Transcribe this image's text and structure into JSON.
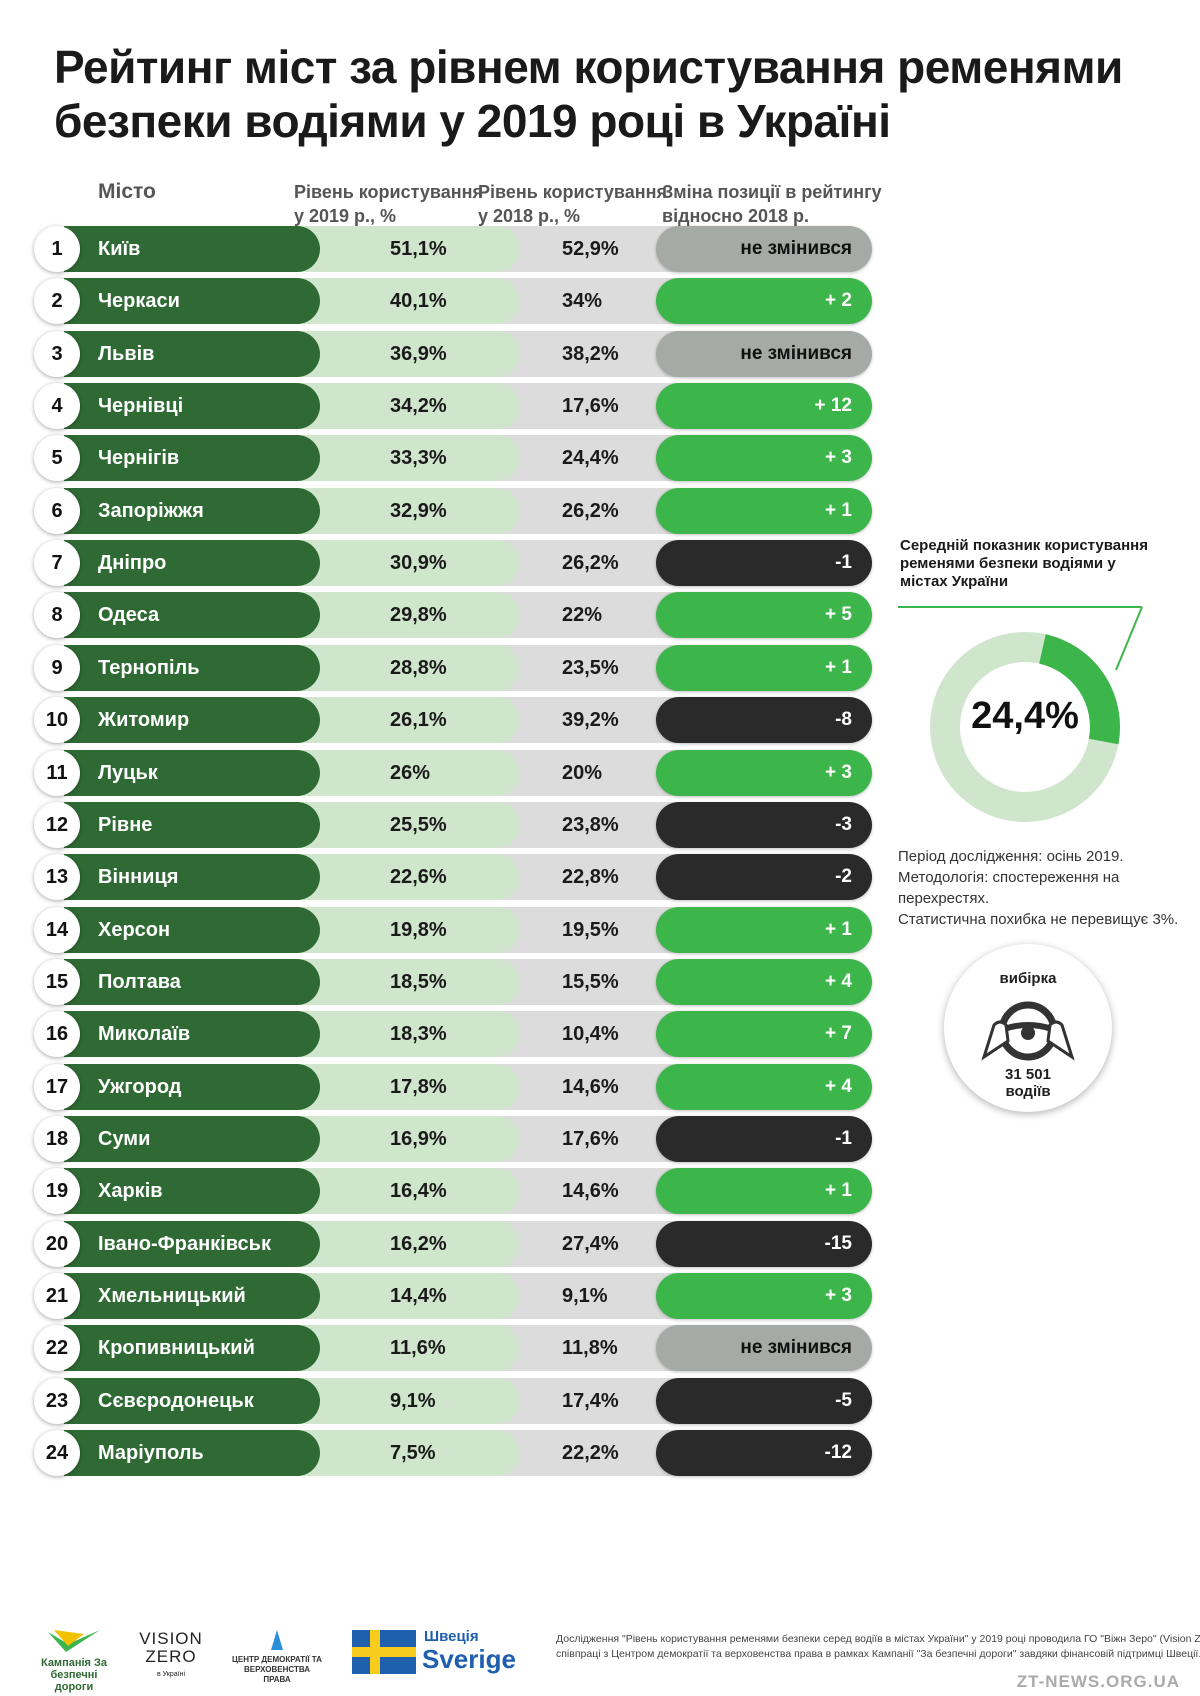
{
  "title": {
    "line1": "Рейтинг міст за рівнем користування ременями",
    "line2": "безпеки водіями у 2019 році в Україні"
  },
  "headers": {
    "city": "Місто",
    "y2019_line1": "Рівень користування",
    "y2019_line2": "у 2019 р., %",
    "y2018_line1": "Рівень користування",
    "y2018_line2": "у 2018 р., %",
    "change_line1": "Зміна позиції в рейтингу",
    "change_line2": "відносно 2018 р."
  },
  "chart_data": {
    "type": "table",
    "columns": [
      "Місто",
      "Рівень користування у 2019 р., %",
      "Рівень користування у 2018 р., %",
      "Зміна позиції в рейтингу відносно 2018 р."
    ],
    "rows": [
      {
        "rank": "1",
        "city": "Київ",
        "v2019": "51,1%",
        "v2018": "52,9%",
        "change": "не змінився",
        "kind": "same"
      },
      {
        "rank": "2",
        "city": "Черкаси",
        "v2019": "40,1%",
        "v2018": "34%",
        "change": "+ 2",
        "kind": "up"
      },
      {
        "rank": "3",
        "city": "Львів",
        "v2019": "36,9%",
        "v2018": "38,2%",
        "change": "не змінився",
        "kind": "same"
      },
      {
        "rank": "4",
        "city": "Чернівці",
        "v2019": "34,2%",
        "v2018": "17,6%",
        "change": "+ 12",
        "kind": "up"
      },
      {
        "rank": "5",
        "city": "Чернігів",
        "v2019": "33,3%",
        "v2018": "24,4%",
        "change": "+ 3",
        "kind": "up"
      },
      {
        "rank": "6",
        "city": "Запоріжжя",
        "v2019": "32,9%",
        "v2018": "26,2%",
        "change": "+ 1",
        "kind": "up"
      },
      {
        "rank": "7",
        "city": "Дніпро",
        "v2019": "30,9%",
        "v2018": "26,2%",
        "change": "-1",
        "kind": "down"
      },
      {
        "rank": "8",
        "city": "Одеса",
        "v2019": "29,8%",
        "v2018": "22%",
        "change": "+ 5",
        "kind": "up"
      },
      {
        "rank": "9",
        "city": "Тернопіль",
        "v2019": "28,8%",
        "v2018": "23,5%",
        "change": "+ 1",
        "kind": "up"
      },
      {
        "rank": "10",
        "city": "Житомир",
        "v2019": "26,1%",
        "v2018": "39,2%",
        "change": "-8",
        "kind": "down"
      },
      {
        "rank": "11",
        "city": "Луцьк",
        "v2019": "26%",
        "v2018": "20%",
        "change": "+ 3",
        "kind": "up"
      },
      {
        "rank": "12",
        "city": "Рівне",
        "v2019": "25,5%",
        "v2018": "23,8%",
        "change": "-3",
        "kind": "down"
      },
      {
        "rank": "13",
        "city": "Вінниця",
        "v2019": "22,6%",
        "v2018": "22,8%",
        "change": "-2",
        "kind": "down"
      },
      {
        "rank": "14",
        "city": "Херсон",
        "v2019": "19,8%",
        "v2018": "19,5%",
        "change": "+ 1",
        "kind": "up"
      },
      {
        "rank": "15",
        "city": "Полтава",
        "v2019": "18,5%",
        "v2018": "15,5%",
        "change": "+ 4",
        "kind": "up"
      },
      {
        "rank": "16",
        "city": "Миколаїв",
        "v2019": "18,3%",
        "v2018": "10,4%",
        "change": "+ 7",
        "kind": "up"
      },
      {
        "rank": "17",
        "city": "Ужгород",
        "v2019": "17,8%",
        "v2018": "14,6%",
        "change": "+ 4",
        "kind": "up"
      },
      {
        "rank": "18",
        "city": "Суми",
        "v2019": "16,9%",
        "v2018": "17,6%",
        "change": "-1",
        "kind": "down"
      },
      {
        "rank": "19",
        "city": "Харків",
        "v2019": "16,4%",
        "v2018": "14,6%",
        "change": "+ 1",
        "kind": "up"
      },
      {
        "rank": "20",
        "city": "Івано-Франківськ",
        "v2019": "16,2%",
        "v2018": "27,4%",
        "change": "-15",
        "kind": "down"
      },
      {
        "rank": "21",
        "city": "Хмельницький",
        "v2019": "14,4%",
        "v2018": "9,1%",
        "change": "+ 3",
        "kind": "up"
      },
      {
        "rank": "22",
        "city": "Кропивницький",
        "v2019": "11,6%",
        "v2018": "11,8%",
        "change": "не змінився",
        "kind": "same"
      },
      {
        "rank": "23",
        "city": "Сєвєродонецьк",
        "v2019": "9,1%",
        "v2018": "17,4%",
        "change": "-5",
        "kind": "down"
      },
      {
        "rank": "24",
        "city": "Маріуполь",
        "v2019": "7,5%",
        "v2018": "22,2%",
        "change": "-12",
        "kind": "down"
      }
    ],
    "colors": {
      "city_bar": "#2f6a34",
      "v2019_bar": "#cfe6cc",
      "v2018_bar": "#dcdcdc",
      "same": "#a6aaa6",
      "up": "#3cb54a",
      "down": "#2a2a2a"
    },
    "average": {
      "type": "pie",
      "label_line1": "Середній показник користування",
      "label_line2": "ременями безпеки водіями  у",
      "label_line3": "містах України",
      "value": 24.4,
      "value_text": "24,4%",
      "colors": {
        "filled": "#3cb54a",
        "rest": "#cfe6cc"
      }
    }
  },
  "notes": {
    "line1": "Період дослідження: осінь 2019.",
    "line2": "Методологія: спостереження на",
    "line3": "перехрестях.",
    "line4": "Статистична похибка не перевищує 3%."
  },
  "sample": {
    "title": "вибірка",
    "count": "31 501",
    "unit": "водіїв",
    "icon": "steering-wheel-icon"
  },
  "footer": {
    "logo_roads": "Кампанія За безпечні дороги",
    "logo_vision": "VISION",
    "logo_vision2": "ZERO",
    "logo_vision_sub": "в Україні",
    "logo_centre": "ЦЕНТР ДЕМОКРАТІЇ ТА ВЕРХОВЕНСТВА ПРАВА",
    "sweden_ua": "Швеція",
    "sweden_en": "Sverige",
    "text_line1": "Дослідження \"Рівень користування ременями безпеки серед водіїв в містах України\" у 2019 році проводила ГО \"Віжн Зеро\" (Vision Zero) у",
    "text_line2": "співпраці з Центром демократії та верховенства права в рамках Кампанії \"За безпечні дороги\" завдяки фінансовій підтримці Швеції.",
    "watermark": "ZT-NEWS.ORG.UA"
  }
}
